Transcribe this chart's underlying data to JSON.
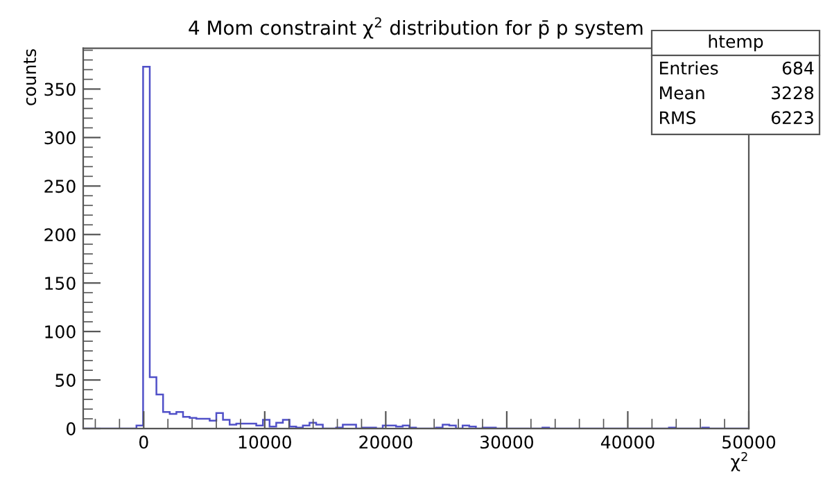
{
  "chart_data": {
    "type": "histogram",
    "title": "4 Mom constraint χ$^{2}$ distribution for p̄ p system",
    "xlabel": "χ$^{2}$",
    "ylabel": "counts",
    "color": "#5050c8",
    "bins": [
      -5000,
      -4450,
      -3900,
      -3350,
      -2800,
      -2250,
      -1700,
      -1150,
      -600,
      -50,
      500,
      1050,
      1600,
      2150,
      2700,
      3250,
      3800,
      4350,
      4900,
      5450,
      6000,
      6550,
      7100,
      7650,
      8200,
      8750,
      9300,
      9850,
      10400,
      10950,
      11500,
      12050,
      12600,
      13150,
      13700,
      14250,
      14800,
      15350,
      15900,
      16450,
      17000,
      17550,
      18100,
      18650,
      19200,
      19750,
      20300,
      20850,
      21400,
      21950,
      22500,
      23050,
      23600,
      24150,
      24700,
      25250,
      25800,
      26350,
      26900,
      27450,
      28000,
      28550,
      29100,
      29650,
      30200,
      30750,
      31300,
      31850,
      32400,
      32950,
      33500,
      34050,
      34600,
      35150,
      35700,
      36250,
      36800,
      37350,
      37900,
      38450,
      39000,
      39550,
      40100,
      40650,
      41200,
      41750,
      42300,
      42850,
      43400,
      43950,
      44500,
      45050,
      45600,
      46150,
      46700,
      47250,
      47800,
      48350,
      48900,
      49450,
      50000
    ],
    "values": [
      0,
      0,
      0,
      0,
      0,
      0,
      0,
      0,
      3,
      373,
      53,
      35,
      17,
      15,
      17,
      12,
      11,
      10,
      10,
      8,
      16,
      9,
      4,
      5,
      5,
      5,
      3,
      9,
      2,
      6,
      9,
      2,
      1,
      3,
      6,
      4,
      0,
      0,
      1,
      4,
      4,
      0,
      1,
      1,
      0,
      3,
      3,
      2,
      3,
      1,
      0,
      0,
      0,
      1,
      4,
      3,
      0,
      3,
      2,
      0,
      1,
      1,
      0,
      0,
      0,
      0,
      0,
      0,
      0,
      1,
      0,
      0,
      0,
      0,
      0,
      0,
      0,
      0,
      0,
      0,
      0,
      0,
      0,
      0,
      0,
      0,
      0,
      0,
      1,
      0,
      0,
      0,
      0,
      1,
      0,
      0,
      0,
      0,
      0,
      0
    ],
    "xlim": [
      -5000,
      50000
    ],
    "xticks": [
      {
        "value": -4000,
        "label": null
      },
      {
        "value": -2000,
        "label": null
      },
      0,
      {
        "value": 2000,
        "label": null
      },
      {
        "value": 4000,
        "label": null
      },
      {
        "value": 6000,
        "label": null
      },
      {
        "value": 8000,
        "label": null
      },
      10000,
      {
        "value": 12000,
        "label": null
      },
      {
        "value": 14000,
        "label": null
      },
      {
        "value": 16000,
        "label": null
      },
      {
        "value": 18000,
        "label": null
      },
      20000,
      {
        "value": 22000,
        "label": null
      },
      {
        "value": 24000,
        "label": null
      },
      {
        "value": 26000,
        "label": null
      },
      {
        "value": 28000,
        "label": null
      },
      30000,
      {
        "value": 32000,
        "label": null
      },
      {
        "value": 34000,
        "label": null
      },
      {
        "value": 36000,
        "label": null
      },
      {
        "value": 38000,
        "label": null
      },
      40000,
      {
        "value": 42000,
        "label": null
      },
      {
        "value": 44000,
        "label": null
      },
      {
        "value": 46000,
        "label": null
      },
      {
        "value": 48000,
        "label": null
      },
      50000
    ],
    "ylim": [
      0,
      392
    ],
    "yticks": [
      0,
      {
        "value": 10,
        "label": null
      },
      {
        "value": 20,
        "label": null
      },
      {
        "value": 30,
        "label": null
      },
      {
        "value": 40,
        "label": null
      },
      50,
      {
        "value": 60,
        "label": null
      },
      {
        "value": 70,
        "label": null
      },
      {
        "value": 80,
        "label": null
      },
      {
        "value": 90,
        "label": null
      },
      100,
      {
        "value": 110,
        "label": null
      },
      {
        "value": 120,
        "label": null
      },
      {
        "value": 130,
        "label": null
      },
      {
        "value": 140,
        "label": null
      },
      150,
      {
        "value": 160,
        "label": null
      },
      {
        "value": 170,
        "label": null
      },
      {
        "value": 180,
        "label": null
      },
      {
        "value": 190,
        "label": null
      },
      200,
      {
        "value": 210,
        "label": null
      },
      {
        "value": 220,
        "label": null
      },
      {
        "value": 230,
        "label": null
      },
      {
        "value": 240,
        "label": null
      },
      250,
      {
        "value": 260,
        "label": null
      },
      {
        "value": 270,
        "label": null
      },
      {
        "value": 280,
        "label": null
      },
      {
        "value": 290,
        "label": null
      },
      300,
      {
        "value": 310,
        "label": null
      },
      {
        "value": 320,
        "label": null
      },
      {
        "value": 330,
        "label": null
      },
      {
        "value": 340,
        "label": null
      },
      350,
      {
        "value": 360,
        "label": null
      },
      {
        "value": 370,
        "label": null
      },
      {
        "value": 380,
        "label": null
      },
      {
        "value": 390,
        "label": null
      }
    ],
    "annotations": [
      "htemp",
      "Entries",
      "684",
      "Mean",
      "3228",
      "RMS",
      "6223"
    ]
  }
}
